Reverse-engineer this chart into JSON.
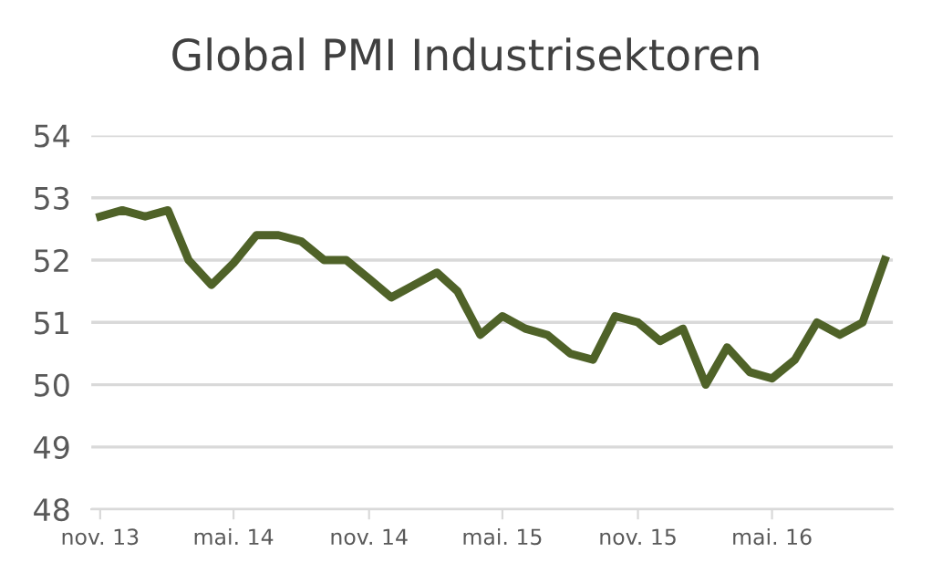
{
  "chart_data": {
    "type": "line",
    "title": "Global PMI Industrisektoren",
    "x": [
      "2013-11",
      "2013-12",
      "2014-01",
      "2014-02",
      "2014-03",
      "2014-04",
      "2014-05",
      "2014-06",
      "2014-07",
      "2014-08",
      "2014-09",
      "2014-10",
      "2014-11",
      "2014-12",
      "2015-01",
      "2015-02",
      "2015-03",
      "2015-04",
      "2015-05",
      "2015-06",
      "2015-07",
      "2015-08",
      "2015-09",
      "2015-10",
      "2015-11",
      "2015-12",
      "2016-01",
      "2016-02",
      "2016-03",
      "2016-04",
      "2016-05",
      "2016-06",
      "2016-07",
      "2016-08",
      "2016-09",
      "2016-10"
    ],
    "series": [
      {
        "color": "#4f6228",
        "values": [
          52.7,
          52.8,
          52.7,
          52.8,
          52.0,
          51.6,
          51.95,
          52.4,
          52.4,
          52.3,
          52.0,
          52.0,
          51.7,
          51.4,
          51.6,
          51.8,
          51.5,
          50.8,
          51.1,
          50.9,
          50.8,
          50.5,
          50.4,
          51.1,
          51.0,
          50.7,
          50.9,
          50.0,
          50.6,
          50.2,
          50.1,
          50.4,
          51.0,
          50.8,
          51.0,
          52.0
        ]
      }
    ],
    "xlim": [
      "2013-10-20",
      "2016-10-12"
    ],
    "xticks": [
      {
        "value": "2013-11",
        "label": "nov. 13"
      },
      {
        "value": "2014-05",
        "label": "mai. 14"
      },
      {
        "value": "2014-11",
        "label": "nov. 14"
      },
      {
        "value": "2015-05",
        "label": "mai. 15"
      },
      {
        "value": "2015-11",
        "label": "nov. 15"
      },
      {
        "value": "2016-05",
        "label": "mai. 16"
      }
    ],
    "ylim": [
      48,
      54
    ],
    "yticks": [
      48,
      49,
      50,
      51,
      52,
      53,
      54
    ],
    "grid": "y",
    "legend": false,
    "marker": "none",
    "line_style": "solid"
  }
}
